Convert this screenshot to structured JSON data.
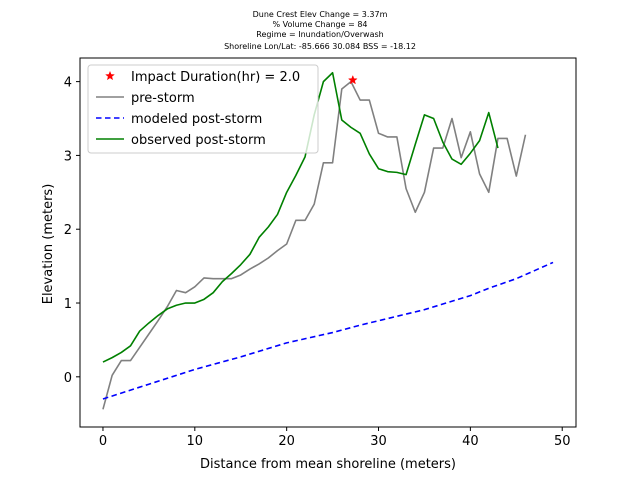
{
  "chart_data": {
    "type": "line",
    "title_lines": [
      "Dune Crest Elev Change = 3.37m",
      "% Volume Change = 84",
      "Regime = Inundation/Overwash",
      "Shoreline Lon/Lat: -85.666 30.084   BSS = -18.12"
    ],
    "xlabel": "Distance from mean shoreline (meters)",
    "ylabel": "Elevation (meters)",
    "xlim": [
      -2.5,
      51.5
    ],
    "ylim": [
      -0.68,
      4.32
    ],
    "xticks": [
      0,
      10,
      20,
      30,
      40,
      50
    ],
    "yticks": [
      0,
      1,
      2,
      3,
      4
    ],
    "grid": false,
    "legend_position": "top-left",
    "series": [
      {
        "name": "pre-storm",
        "color": "#808080",
        "style": "solid",
        "points": [
          [
            0,
            -0.44
          ],
          [
            1,
            0.02
          ],
          [
            2,
            0.22
          ],
          [
            3,
            0.22
          ],
          [
            4,
            0.4
          ],
          [
            5,
            0.58
          ],
          [
            6,
            0.76
          ],
          [
            7,
            0.95
          ],
          [
            8,
            1.17
          ],
          [
            9,
            1.14
          ],
          [
            10,
            1.22
          ],
          [
            11,
            1.34
          ],
          [
            12,
            1.33
          ],
          [
            13,
            1.33
          ],
          [
            14,
            1.33
          ],
          [
            15,
            1.38
          ],
          [
            16,
            1.46
          ],
          [
            17,
            1.53
          ],
          [
            18,
            1.61
          ],
          [
            19,
            1.71
          ],
          [
            20,
            1.8
          ],
          [
            21,
            2.12
          ],
          [
            22,
            2.12
          ],
          [
            23,
            2.34
          ],
          [
            24,
            2.9
          ],
          [
            25,
            2.9
          ],
          [
            26,
            3.9
          ],
          [
            27,
            4.0
          ],
          [
            28,
            3.75
          ],
          [
            29,
            3.75
          ],
          [
            30,
            3.3
          ],
          [
            31,
            3.25
          ],
          [
            32,
            3.25
          ],
          [
            33,
            2.55
          ],
          [
            34,
            2.23
          ],
          [
            35,
            2.5
          ],
          [
            36,
            3.1
          ],
          [
            37,
            3.1
          ],
          [
            38,
            3.5
          ],
          [
            39,
            2.97
          ],
          [
            40,
            3.32
          ],
          [
            41,
            2.75
          ],
          [
            42,
            2.5
          ],
          [
            43,
            3.23
          ],
          [
            44,
            3.23
          ],
          [
            45,
            2.72
          ],
          [
            46,
            3.28
          ]
        ]
      },
      {
        "name": "modeled post-storm",
        "color": "#0000ff",
        "style": "dashed",
        "points": [
          [
            0,
            -0.3
          ],
          [
            5,
            -0.1
          ],
          [
            10,
            0.1
          ],
          [
            15,
            0.27
          ],
          [
            20,
            0.46
          ],
          [
            25,
            0.6
          ],
          [
            28,
            0.7
          ],
          [
            30,
            0.76
          ],
          [
            35,
            0.91
          ],
          [
            40,
            1.1
          ],
          [
            42,
            1.2
          ],
          [
            45,
            1.33
          ],
          [
            49,
            1.55
          ]
        ]
      },
      {
        "name": "observed post-storm",
        "color": "#008000",
        "style": "solid",
        "points": [
          [
            0,
            0.2
          ],
          [
            1,
            0.26
          ],
          [
            2,
            0.33
          ],
          [
            3,
            0.42
          ],
          [
            4,
            0.62
          ],
          [
            5,
            0.73
          ],
          [
            6,
            0.83
          ],
          [
            7,
            0.92
          ],
          [
            8,
            0.97
          ],
          [
            9,
            1.0
          ],
          [
            10,
            1.0
          ],
          [
            11,
            1.05
          ],
          [
            12,
            1.14
          ],
          [
            13,
            1.29
          ],
          [
            14,
            1.4
          ],
          [
            15,
            1.52
          ],
          [
            16,
            1.66
          ],
          [
            17,
            1.89
          ],
          [
            18,
            2.03
          ],
          [
            19,
            2.2
          ],
          [
            20,
            2.5
          ],
          [
            21,
            2.73
          ],
          [
            22,
            2.98
          ],
          [
            23,
            3.55
          ],
          [
            24,
            4.0
          ],
          [
            25,
            4.12
          ],
          [
            26,
            3.48
          ],
          [
            27,
            3.38
          ],
          [
            28,
            3.3
          ],
          [
            29,
            3.02
          ],
          [
            30,
            2.82
          ],
          [
            31,
            2.78
          ],
          [
            32,
            2.77
          ],
          [
            33,
            2.74
          ],
          [
            34,
            3.15
          ],
          [
            35,
            3.55
          ],
          [
            36,
            3.5
          ],
          [
            37,
            3.18
          ],
          [
            38,
            2.95
          ],
          [
            39,
            2.88
          ],
          [
            40,
            3.03
          ],
          [
            41,
            3.2
          ],
          [
            42,
            3.58
          ],
          [
            43,
            3.1
          ]
        ]
      }
    ],
    "impact_marker": {
      "name": "Impact Duration(hr) = 2.0",
      "color": "#ff0000",
      "x": 27.2,
      "y": 4.02
    }
  }
}
